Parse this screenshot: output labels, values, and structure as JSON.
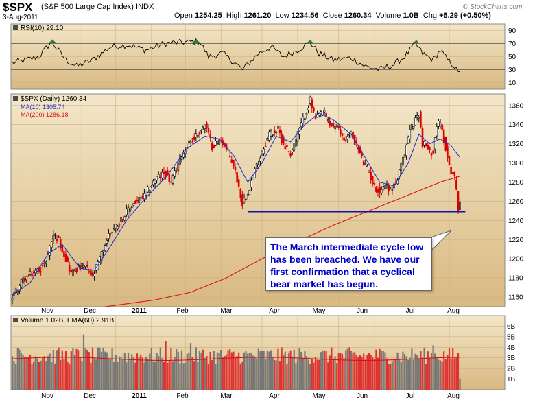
{
  "header": {
    "symbol": "$SPX",
    "description": "(S&P 500 Large Cap Index) INDX",
    "date": "3-Aug-2011",
    "open_label": "Open",
    "open": "1254.25",
    "high_label": "High",
    "high": "1261.20",
    "low_label": "Low",
    "low": "1234.56",
    "close_label": "Close",
    "close": "1260.34",
    "volume_label": "Volume",
    "volume": "1.0B",
    "chg_label": "Chg",
    "chg": "+6.29 (+0.50%)",
    "brand": "© StockCharts.com"
  },
  "rsi_panel": {
    "label": "RSI(10) 29.10",
    "ticks": [
      90,
      70,
      50,
      30,
      10
    ],
    "ylim": [
      0,
      100
    ],
    "bands": [
      30,
      70
    ]
  },
  "price_panel": {
    "label": "$SPX (Daily) 1260.34",
    "ma10_label": "MA(10) 1305.74",
    "ma200_label": "MA(200) 1286.18",
    "ma10_color": "#2233cc",
    "ma200_color": "#dd1111",
    "ticks": [
      1360,
      1340,
      1320,
      1300,
      1280,
      1260,
      1240,
      1220,
      1200,
      1180,
      1160
    ],
    "ylim": [
      1150,
      1372
    ],
    "support_level": 1249,
    "annotation": "The March intermediate cycle low has been breached. We have our first confirmation that a cyclical bear market has begun."
  },
  "volume_panel": {
    "label": "Volume 1.02B, EMA(60) 2.91B",
    "ticks": [
      "6B",
      "5B",
      "4B",
      "3B",
      "2B",
      "1B"
    ],
    "ylim": [
      0,
      7
    ]
  },
  "x_axis": {
    "months": [
      "Nov",
      "Dec",
      "2011",
      "Feb",
      "Mar",
      "Apr",
      "May",
      "Jun",
      "Jul",
      "Aug"
    ]
  },
  "chart_data": {
    "type": "line",
    "title": "$SPX (S&P 500 Large Cap Index) INDX",
    "ylim": [
      1150,
      1372
    ],
    "close_waypoints": [
      {
        "d": 0,
        "v": 1160
      },
      {
        "d": 6,
        "v": 1178
      },
      {
        "d": 12,
        "v": 1185
      },
      {
        "d": 18,
        "v": 1193
      },
      {
        "d": 23,
        "v": 1225
      },
      {
        "d": 26,
        "v": 1220
      },
      {
        "d": 30,
        "v": 1200
      },
      {
        "d": 33,
        "v": 1185
      },
      {
        "d": 36,
        "v": 1190
      },
      {
        "d": 41,
        "v": 1192
      },
      {
        "d": 45,
        "v": 1180
      },
      {
        "d": 49,
        "v": 1200
      },
      {
        "d": 54,
        "v": 1225
      },
      {
        "d": 62,
        "v": 1243
      },
      {
        "d": 68,
        "v": 1258
      },
      {
        "d": 74,
        "v": 1265
      },
      {
        "d": 80,
        "v": 1283
      },
      {
        "d": 86,
        "v": 1290
      },
      {
        "d": 89,
        "v": 1278
      },
      {
        "d": 94,
        "v": 1305
      },
      {
        "d": 99,
        "v": 1322
      },
      {
        "d": 104,
        "v": 1330
      },
      {
        "d": 108,
        "v": 1340
      },
      {
        "d": 112,
        "v": 1318
      },
      {
        "d": 117,
        "v": 1325
      },
      {
        "d": 121,
        "v": 1310
      },
      {
        "d": 124,
        "v": 1298
      },
      {
        "d": 127,
        "v": 1275
      },
      {
        "d": 129,
        "v": 1258
      },
      {
        "d": 132,
        "v": 1270
      },
      {
        "d": 136,
        "v": 1292
      },
      {
        "d": 140,
        "v": 1312
      },
      {
        "d": 144,
        "v": 1330
      },
      {
        "d": 149,
        "v": 1335
      },
      {
        "d": 152,
        "v": 1320
      },
      {
        "d": 156,
        "v": 1310
      },
      {
        "d": 160,
        "v": 1330
      },
      {
        "d": 164,
        "v": 1350
      },
      {
        "d": 167,
        "v": 1365
      },
      {
        "d": 170,
        "v": 1345
      },
      {
        "d": 174,
        "v": 1355
      },
      {
        "d": 178,
        "v": 1340
      },
      {
        "d": 182,
        "v": 1337
      },
      {
        "d": 186,
        "v": 1325
      },
      {
        "d": 190,
        "v": 1330
      },
      {
        "d": 194,
        "v": 1315
      },
      {
        "d": 197,
        "v": 1300
      },
      {
        "d": 200,
        "v": 1290
      },
      {
        "d": 203,
        "v": 1275
      },
      {
        "d": 206,
        "v": 1270
      },
      {
        "d": 209,
        "v": 1278
      },
      {
        "d": 212,
        "v": 1272
      },
      {
        "d": 216,
        "v": 1283
      },
      {
        "d": 220,
        "v": 1310
      },
      {
        "d": 223,
        "v": 1335
      },
      {
        "d": 226,
        "v": 1345
      },
      {
        "d": 228,
        "v": 1352
      },
      {
        "d": 230,
        "v": 1320
      },
      {
        "d": 232,
        "v": 1318
      },
      {
        "d": 234,
        "v": 1310
      },
      {
        "d": 236,
        "v": 1314
      },
      {
        "d": 238,
        "v": 1340
      },
      {
        "d": 240,
        "v": 1340
      },
      {
        "d": 242,
        "v": 1325
      },
      {
        "d": 244,
        "v": 1305
      },
      {
        "d": 246,
        "v": 1292
      },
      {
        "d": 248,
        "v": 1285
      },
      {
        "d": 249,
        "v": 1270
      },
      {
        "d": 250,
        "v": 1254
      },
      {
        "d": 251,
        "v": 1260
      }
    ],
    "ma10_waypoints": [
      {
        "d": 0,
        "v": 1162
      },
      {
        "d": 10,
        "v": 1175
      },
      {
        "d": 20,
        "v": 1205
      },
      {
        "d": 28,
        "v": 1215
      },
      {
        "d": 38,
        "v": 1190
      },
      {
        "d": 46,
        "v": 1188
      },
      {
        "d": 54,
        "v": 1210
      },
      {
        "d": 64,
        "v": 1240
      },
      {
        "d": 74,
        "v": 1262
      },
      {
        "d": 86,
        "v": 1285
      },
      {
        "d": 98,
        "v": 1315
      },
      {
        "d": 108,
        "v": 1328
      },
      {
        "d": 116,
        "v": 1325
      },
      {
        "d": 124,
        "v": 1308
      },
      {
        "d": 132,
        "v": 1280
      },
      {
        "d": 140,
        "v": 1300
      },
      {
        "d": 148,
        "v": 1328
      },
      {
        "d": 156,
        "v": 1322
      },
      {
        "d": 164,
        "v": 1340
      },
      {
        "d": 172,
        "v": 1352
      },
      {
        "d": 180,
        "v": 1345
      },
      {
        "d": 190,
        "v": 1330
      },
      {
        "d": 198,
        "v": 1305
      },
      {
        "d": 206,
        "v": 1280
      },
      {
        "d": 214,
        "v": 1276
      },
      {
        "d": 222,
        "v": 1300
      },
      {
        "d": 228,
        "v": 1330
      },
      {
        "d": 234,
        "v": 1320
      },
      {
        "d": 240,
        "v": 1325
      },
      {
        "d": 246,
        "v": 1318
      },
      {
        "d": 251,
        "v": 1305.74
      }
    ],
    "ma200_waypoints": [
      {
        "d": 52,
        "v": 1150
      },
      {
        "d": 80,
        "v": 1157
      },
      {
        "d": 100,
        "v": 1165
      },
      {
        "d": 120,
        "v": 1180
      },
      {
        "d": 140,
        "v": 1200
      },
      {
        "d": 160,
        "v": 1218
      },
      {
        "d": 180,
        "v": 1235
      },
      {
        "d": 200,
        "v": 1250
      },
      {
        "d": 220,
        "v": 1265
      },
      {
        "d": 240,
        "v": 1280
      },
      {
        "d": 251,
        "v": 1286.18
      }
    ],
    "rsi_waypoints": [
      {
        "d": 0,
        "v": 40
      },
      {
        "d": 15,
        "v": 50
      },
      {
        "d": 22,
        "v": 73
      },
      {
        "d": 30,
        "v": 45
      },
      {
        "d": 36,
        "v": 35
      },
      {
        "d": 45,
        "v": 45
      },
      {
        "d": 55,
        "v": 65
      },
      {
        "d": 65,
        "v": 68
      },
      {
        "d": 75,
        "v": 60
      },
      {
        "d": 85,
        "v": 70
      },
      {
        "d": 95,
        "v": 72
      },
      {
        "d": 105,
        "v": 73
      },
      {
        "d": 110,
        "v": 50
      },
      {
        "d": 118,
        "v": 55
      },
      {
        "d": 125,
        "v": 40
      },
      {
        "d": 129,
        "v": 30
      },
      {
        "d": 138,
        "v": 55
      },
      {
        "d": 145,
        "v": 65
      },
      {
        "d": 152,
        "v": 50
      },
      {
        "d": 160,
        "v": 60
      },
      {
        "d": 167,
        "v": 72
      },
      {
        "d": 172,
        "v": 55
      },
      {
        "d": 180,
        "v": 45
      },
      {
        "d": 190,
        "v": 48
      },
      {
        "d": 198,
        "v": 35
      },
      {
        "d": 206,
        "v": 30
      },
      {
        "d": 214,
        "v": 38
      },
      {
        "d": 220,
        "v": 50
      },
      {
        "d": 226,
        "v": 70
      },
      {
        "d": 230,
        "v": 55
      },
      {
        "d": 236,
        "v": 45
      },
      {
        "d": 240,
        "v": 60
      },
      {
        "d": 244,
        "v": 45
      },
      {
        "d": 248,
        "v": 35
      },
      {
        "d": 250,
        "v": 24
      },
      {
        "d": 251,
        "v": 29.1
      }
    ],
    "volume_ema": 2.91,
    "last_volume": 1.02
  }
}
